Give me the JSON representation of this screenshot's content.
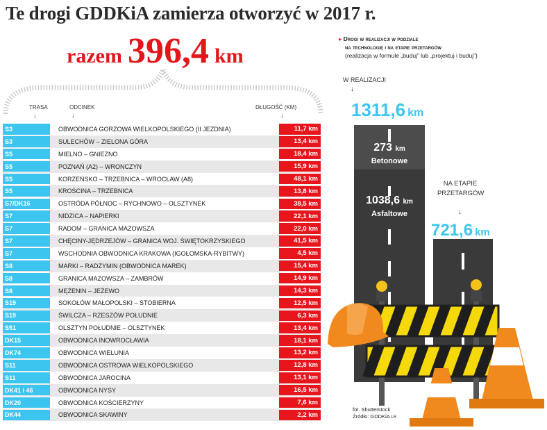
{
  "title": "Te drogi GDDKiA zamierza otworzyć w 2017 r.",
  "total": {
    "label": "razem",
    "value": "396,4",
    "unit": "km"
  },
  "columns": {
    "trasa": "TRASA",
    "odcinek": "ODCINEK",
    "dlugosc": "DŁUGOŚĆ (KM)"
  },
  "chart_data": {
    "type": "table",
    "title": "Te drogi GDDKiA zamierza otworzyć w 2017 r.",
    "columns": [
      "TRASA",
      "ODCINEK",
      "DŁUGOŚĆ (KM)"
    ],
    "rows": [
      {
        "trasa": "S3",
        "odcinek": "OBWODNICA GORZOWA WIELKOPOLSKIEGO (II JEZDNIA)",
        "dlugosc": "11,7 km"
      },
      {
        "trasa": "S3",
        "odcinek": "SULECHÓW – ZIELONA GÓRA",
        "dlugosc": "13,4 km"
      },
      {
        "trasa": "S5",
        "odcinek": "MIELNO – GNIEZNO",
        "dlugosc": "18,4 km"
      },
      {
        "trasa": "S5",
        "odcinek": "POZNAŃ (A2) – WRONCZYN",
        "dlugosc": "15,9 km"
      },
      {
        "trasa": "S5",
        "odcinek": "KORZEŃSKO – TRZEBNICA – WROCŁAW (A8)",
        "dlugosc": "48,1 km"
      },
      {
        "trasa": "S5",
        "odcinek": "KROŚCINA – TRZEBNICA",
        "dlugosc": "13,8 km"
      },
      {
        "trasa": "S7/DK16",
        "odcinek": "OSTRÓDA PÓŁNOC – RYCHNOWO – OLSZTYNEK",
        "dlugosc": "38,5 km"
      },
      {
        "trasa": "S7",
        "odcinek": "NIDZICA – NAPIERKI",
        "dlugosc": "22,1 km"
      },
      {
        "trasa": "S7",
        "odcinek": "RADOM – GRANICA MAZOWSZA",
        "dlugosc": "22,0 km"
      },
      {
        "trasa": "S7",
        "odcinek": "CHĘCINY-JĘDRZEJÓW – GRANICA WOJ. ŚWIĘTOKRZYSKIEGO",
        "dlugosc": "41,5 km"
      },
      {
        "trasa": "S7",
        "odcinek": "WSCHODNIA OBWODNICA KRAKOWA (IGOŁOMSKA-RYBITWY)",
        "dlugosc": "4,5 km"
      },
      {
        "trasa": "S8",
        "odcinek": "MARKI – RADZYMIN (OBWODNICA MAREK)",
        "dlugosc": "15,4 km"
      },
      {
        "trasa": "S8",
        "odcinek": "GRANICA MAZOWSZA – ZAMBRÓW",
        "dlugosc": "14,9 km"
      },
      {
        "trasa": "S8",
        "odcinek": "MĘŻENIN – JEŻEWO",
        "dlugosc": "14,3 km"
      },
      {
        "trasa": "S19",
        "odcinek": "SOKOŁÓW MAŁOPOLSKI – STOBIERNA",
        "dlugosc": "12,5 km"
      },
      {
        "trasa": "S19",
        "odcinek": "ŚWILCZA – RZESZÓW POŁUDNIE",
        "dlugosc": "6,3 km"
      },
      {
        "trasa": "S51",
        "odcinek": "OLSZTYN POŁUDNIE – OLSZTYNEK",
        "dlugosc": "13,4 km"
      },
      {
        "trasa": "DK15",
        "odcinek": "OBWODNICA INOWROCŁAWIA",
        "dlugosc": "18,1 km"
      },
      {
        "trasa": "DK74",
        "odcinek": "OBWODNICA WIELUNIA",
        "dlugosc": "13,2 km"
      },
      {
        "trasa": "S11",
        "odcinek": "OBWODNICA OSTROWA WIELKOPOLSKIEGO",
        "dlugosc": "12,8 km"
      },
      {
        "trasa": "S11",
        "odcinek": "OBWODNICA JAROCINA",
        "dlugosc": "13,1 km"
      },
      {
        "trasa": "DK41 i 46",
        "odcinek": "OBWODNICA NYSY",
        "dlugosc": "16,5 km"
      },
      {
        "trasa": "DK20",
        "odcinek": "OBWODNICA KOŚCIERZYNY",
        "dlugosc": "7,6 km"
      },
      {
        "trasa": "DK44",
        "odcinek": "OBWODNICA SKAWINY",
        "dlugosc": "2,2 km"
      }
    ]
  },
  "right": {
    "heading1": "Drogi w realizacji w podziale",
    "heading2": "na technologię i na etapie przetargów",
    "note": "(realizacja w formule „buduj” lub „projektuj i buduj”)",
    "w_realizacji_label": "W REALIZACJI",
    "w_realizacji_value": "1311,6",
    "w_realizacji_unit": "km",
    "betonowe_value": "273",
    "betonowe_unit": "km",
    "betonowe_label": "Betonowe",
    "asfaltowe_value": "1038,6",
    "asfaltowe_unit": "km",
    "asfaltowe_label": "Asfaltowe",
    "przetarg_label_1": "NA ETAPIE",
    "przetarg_label_2": "PRZETARGÓW",
    "przetarg_value": "721,6",
    "przetarg_unit": "km"
  },
  "source": {
    "foto": "fot. Shutterstock",
    "zrodlo": "Źródło: GDDKiA",
    "initials": "LR"
  },
  "colors": {
    "accent_red": "#e8161c",
    "accent_blue": "#3cc6ef",
    "road": "#3a3a3a",
    "cone": "#f08a1e",
    "barrier_yellow": "#f5d90a"
  }
}
